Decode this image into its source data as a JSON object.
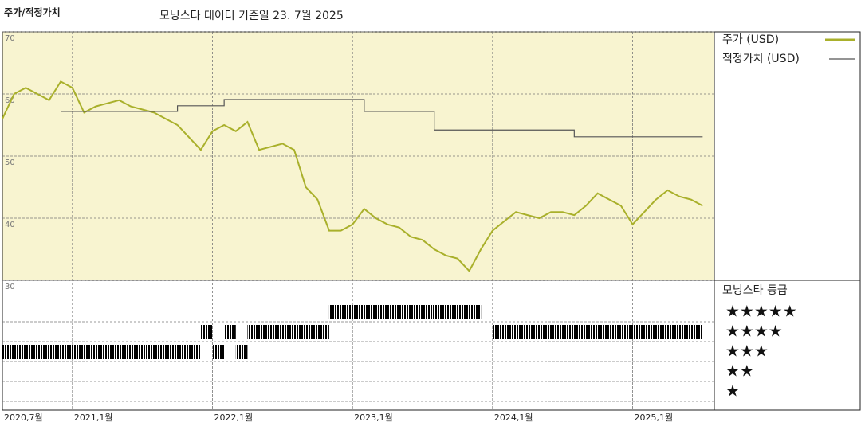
{
  "chart_data": {
    "type": "line",
    "title": "주가/적정가치",
    "subtitle": "모닝스타 데이터 기준일 23. 7월 2025",
    "xlim": [
      "2020-07",
      "2025-08"
    ],
    "xticks": [
      {
        "value": "2020-07",
        "label": "2020,7월"
      },
      {
        "value": "2021-01",
        "label": "2021,1월"
      },
      {
        "value": "2022-01",
        "label": "2022,1월"
      },
      {
        "value": "2023-01",
        "label": "2023,1월"
      },
      {
        "value": "2024-01",
        "label": "2024,1월"
      },
      {
        "value": "2025-01",
        "label": "2025,1월"
      }
    ],
    "ylim": [
      30,
      70
    ],
    "yticks": [
      30,
      40,
      50,
      60,
      70
    ],
    "grid": true,
    "series": [
      {
        "name": "주가 (USD)",
        "color": "#a9b02b",
        "x": [
          "2020-07",
          "2020-08",
          "2020-09",
          "2020-10",
          "2020-11",
          "2020-12",
          "2021-01",
          "2021-02",
          "2021-03",
          "2021-04",
          "2021-05",
          "2021-06",
          "2021-07",
          "2021-08",
          "2021-09",
          "2021-10",
          "2021-11",
          "2021-12",
          "2022-01",
          "2022-02",
          "2022-03",
          "2022-04",
          "2022-05",
          "2022-06",
          "2022-07",
          "2022-08",
          "2022-09",
          "2022-10",
          "2022-11",
          "2022-12",
          "2023-01",
          "2023-02",
          "2023-03",
          "2023-04",
          "2023-05",
          "2023-06",
          "2023-07",
          "2023-08",
          "2023-09",
          "2023-10",
          "2023-11",
          "2023-12",
          "2024-01",
          "2024-02",
          "2024-03",
          "2024-04",
          "2024-05",
          "2024-06",
          "2024-07",
          "2024-08",
          "2024-09",
          "2024-10",
          "2024-11",
          "2024-12",
          "2025-01",
          "2025-02",
          "2025-03",
          "2025-04",
          "2025-05",
          "2025-06",
          "2025-07"
        ],
        "values": [
          56,
          60,
          61,
          60,
          59,
          62,
          61,
          57,
          58,
          58.5,
          59,
          58,
          57.5,
          57,
          56,
          55,
          53,
          51,
          54,
          55,
          54,
          55.5,
          51,
          51.5,
          52,
          51,
          45,
          43,
          38,
          38,
          39,
          41.5,
          40,
          39,
          38.5,
          37,
          36.5,
          35,
          34,
          33.5,
          31.5,
          35,
          38,
          39.5,
          41,
          40.5,
          40,
          41,
          41,
          40.5,
          42,
          44,
          43,
          42,
          39,
          41,
          43,
          44.5,
          43.5,
          43,
          42
        ]
      },
      {
        "name": "적정가치 (USD)",
        "color": "#555555",
        "step": true,
        "x": [
          "2020-12",
          "2021-10",
          "2022-02",
          "2023-02",
          "2023-08",
          "2024-08",
          "2025-07"
        ],
        "values": [
          57.2,
          58.1,
          59.1,
          57.2,
          54.2,
          53.1,
          53.1
        ]
      }
    ],
    "rating_title": "모닝스타 등급",
    "rating_labels": [
      "★",
      "★★",
      "★★★",
      "★★★★",
      "★★★★★"
    ],
    "rating_colors": {
      "default": "#333333",
      "top": "#3f8a6e"
    },
    "ratings": [
      {
        "stars": 3,
        "start": "2020-07",
        "end": "2021-12"
      },
      {
        "stars": 4,
        "start": "2021-12",
        "end": "2022-01"
      },
      {
        "stars": 3,
        "start": "2022-01",
        "end": "2022-02"
      },
      {
        "stars": 4,
        "start": "2022-02",
        "end": "2022-03"
      },
      {
        "stars": 3,
        "start": "2022-03",
        "end": "2022-04"
      },
      {
        "stars": 4,
        "start": "2022-04",
        "end": "2022-11"
      },
      {
        "stars": 5,
        "start": "2022-11",
        "end": "2023-12"
      },
      {
        "stars": 4,
        "start": "2024-01",
        "end": "2025-07"
      }
    ]
  }
}
